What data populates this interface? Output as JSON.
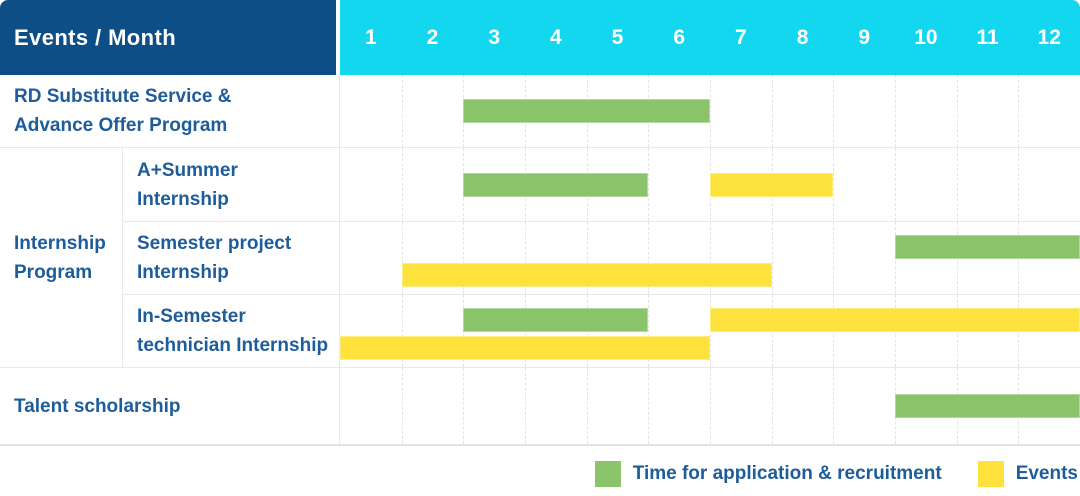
{
  "header": {
    "title": "Events / Month",
    "months": [
      "1",
      "2",
      "3",
      "4",
      "5",
      "6",
      "7",
      "8",
      "9",
      "10",
      "11",
      "12"
    ]
  },
  "chart_data": {
    "type": "table",
    "subtype": "gantt-schedule",
    "x_axis_label": "Month",
    "x_range": [
      1,
      12
    ],
    "categories": [
      "1",
      "2",
      "3",
      "4",
      "5",
      "6",
      "7",
      "8",
      "9",
      "10",
      "11",
      "12"
    ],
    "grid": "vertical-dashed",
    "legend_position": "bottom-right",
    "rows": [
      {
        "name": "rd-substitute-service",
        "label_lines": [
          "RD Substitute Service &",
          "Advance Offer Program"
        ],
        "bars": [
          {
            "type": "application",
            "start_month": 3,
            "end_month": 6,
            "lane": "center"
          }
        ]
      },
      {
        "name": "internship-program",
        "label_lines": [
          "Internship",
          "Program"
        ],
        "subrows": [
          {
            "name": "a-plus-summer-internship",
            "label_lines": [
              "A+Summer",
              "Internship"
            ],
            "bars": [
              {
                "type": "application",
                "start_month": 3,
                "end_month": 5,
                "lane": "center"
              },
              {
                "type": "event",
                "start_month": 7,
                "end_month": 8,
                "lane": "center"
              }
            ]
          },
          {
            "name": "semester-project-internship",
            "label_lines": [
              "Semester project",
              "Internship"
            ],
            "bars": [
              {
                "type": "application",
                "start_month": 10,
                "end_month": 12,
                "lane": "top"
              },
              {
                "type": "event",
                "start_month": 2,
                "end_month": 7,
                "lane": "bottom"
              }
            ]
          },
          {
            "name": "in-semester-technician-internship",
            "label_lines": [
              "In-Semester",
              "technician Internship"
            ],
            "bars": [
              {
                "type": "application",
                "start_month": 3,
                "end_month": 5,
                "lane": "top"
              },
              {
                "type": "event",
                "start_month": 7,
                "end_month": 12,
                "lane": "top"
              },
              {
                "type": "event",
                "start_month": 1,
                "end_month": 6,
                "lane": "bottom"
              }
            ]
          }
        ]
      },
      {
        "name": "talent-scholarship",
        "label_lines": [
          "Talent scholarship"
        ],
        "bars": [
          {
            "type": "application",
            "start_month": 10,
            "end_month": 12,
            "lane": "center"
          }
        ]
      }
    ]
  },
  "legend": {
    "items": [
      {
        "type": "application",
        "label": "Time for application & recruitment"
      },
      {
        "type": "event",
        "label": "Events"
      }
    ]
  },
  "colors": {
    "header_navy": "#0e4e86",
    "months_cyan": "#12d7ee",
    "application_green": "#8bc36a",
    "event_yellow": "#fde23e",
    "label_text": "#1e5c9a",
    "grid_line": "#e4e4e4"
  }
}
